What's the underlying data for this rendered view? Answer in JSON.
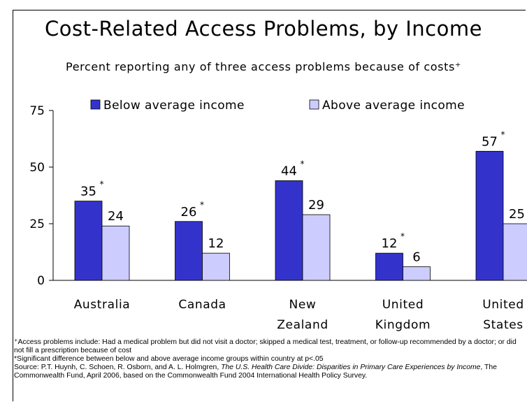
{
  "title": "Cost-Related Access Problems, by Income",
  "subtitle": "Percent reporting any of three access problems because of costs⁺",
  "colors": {
    "below": "#3333cc",
    "above": "#ccccff"
  },
  "chart_data": {
    "type": "bar",
    "categories": [
      [
        "Australia"
      ],
      [
        "Canada"
      ],
      [
        "New",
        "Zealand"
      ],
      [
        "United",
        "Kingdom"
      ],
      [
        "United",
        "States"
      ]
    ],
    "series": [
      {
        "name": "Below average income",
        "values": [
          35,
          26,
          44,
          12,
          57
        ],
        "significant": [
          true,
          true,
          true,
          true,
          true
        ]
      },
      {
        "name": "Above average income",
        "values": [
          24,
          12,
          29,
          6,
          25
        ],
        "significant": [
          false,
          false,
          false,
          false,
          false
        ]
      }
    ],
    "ylim": [
      0,
      75
    ],
    "yticks": [
      0,
      25,
      50,
      75
    ],
    "significance_mark": "*",
    "legend": "top"
  },
  "notes": {
    "line1": "⁺Access problems include: Had a medical problem but did not visit a doctor; skipped a medical test, treatment, or follow-up recommended by a doctor; or did not fill a prescription because of cost",
    "line2": "*Significant difference between below and above average income groups within country at p<.05",
    "source_prefix": "Source: P.T. Huynh, C. Schoen, R. Osborn, and A. L. Holmgren, ",
    "source_title": "The U.S. Health Care Divide: Disparities in Primary Care Experiences by Income",
    "source_suffix": ", The Commonwealth Fund, April 2006, based on the Commonwealth Fund 2004 International Health Policy Survey."
  }
}
